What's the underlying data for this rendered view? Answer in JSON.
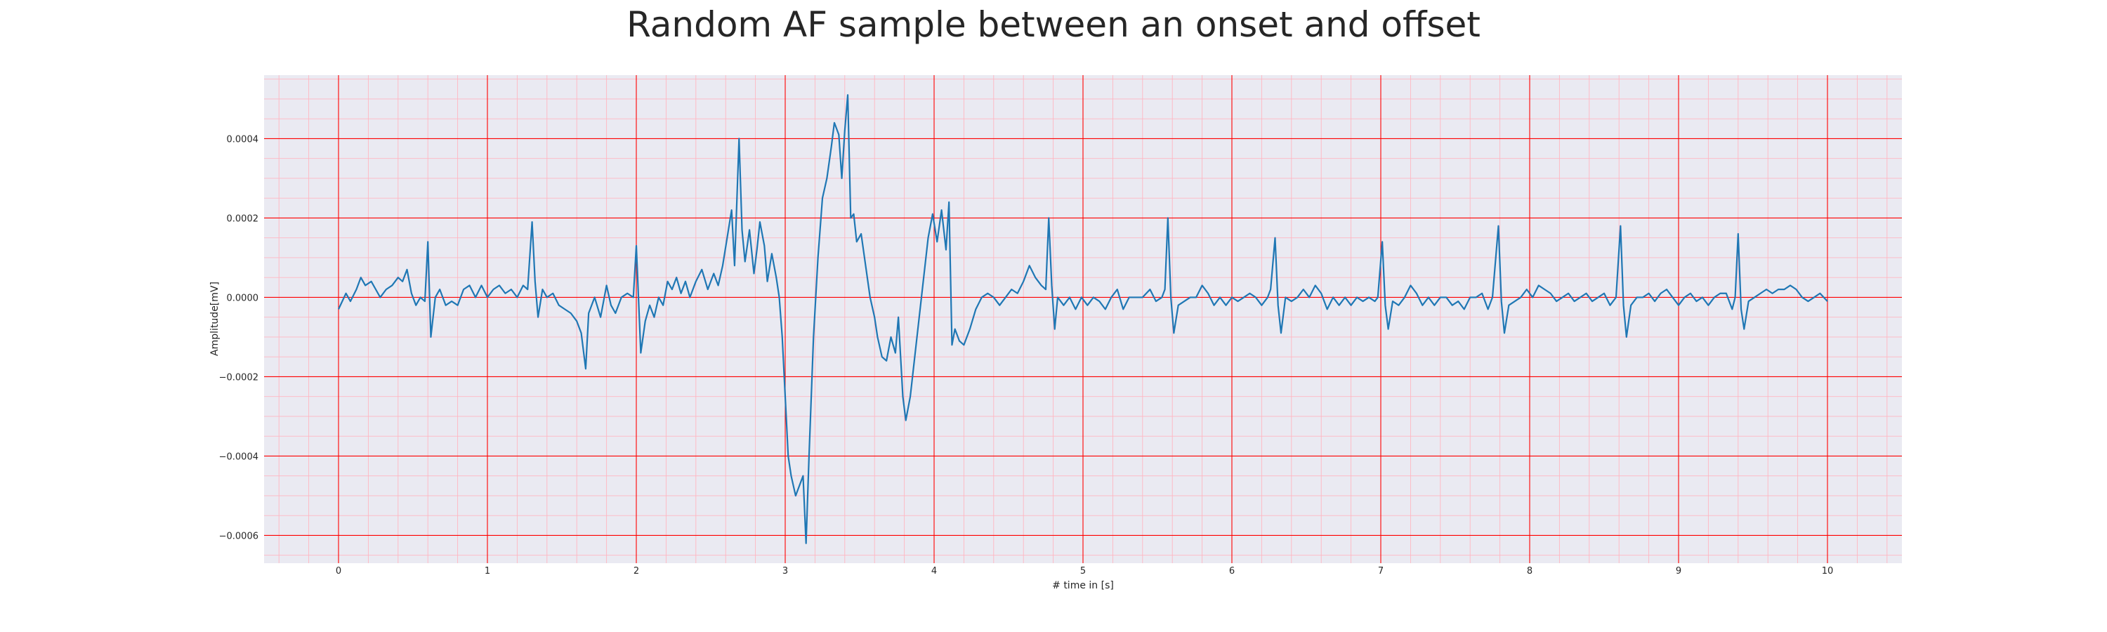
{
  "chart_data": {
    "type": "line",
    "title": "Random AF sample between an onset and offset",
    "xlabel": "# time in [s]",
    "ylabel": "Amplitude[mV]",
    "xlim": [
      -0.5,
      10.5
    ],
    "ylim": [
      -0.00067,
      0.00056
    ],
    "xticks": [
      0,
      1,
      2,
      3,
      4,
      5,
      6,
      7,
      8,
      9,
      10
    ],
    "xtick_labels": [
      "0",
      "1",
      "2",
      "3",
      "4",
      "5",
      "6",
      "7",
      "8",
      "9",
      "10"
    ],
    "yticks": [
      0.0004,
      0.0002,
      0.0,
      -0.0002,
      -0.0004,
      -0.0006
    ],
    "ytick_labels": [
      "0.0004",
      "0.0002",
      "0.0000",
      "−0.0002",
      "−0.0004",
      "−0.0006"
    ],
    "grid": true,
    "minor_grid": true,
    "colors": {
      "line": "#1f77b4",
      "axes_background": "#eaeaf2",
      "major_grid": "#ff0000",
      "minor_grid": "#ffb6c1"
    },
    "series": [
      {
        "values": [
          [
            0.0,
            -3e-05
          ],
          [
            0.05,
            1e-05
          ],
          [
            0.08,
            -1e-05
          ],
          [
            0.12,
            2e-05
          ],
          [
            0.15,
            5e-05
          ],
          [
            0.18,
            3e-05
          ],
          [
            0.22,
            4e-05
          ],
          [
            0.25,
            2e-05
          ],
          [
            0.28,
            0.0
          ],
          [
            0.32,
            2e-05
          ],
          [
            0.36,
            3e-05
          ],
          [
            0.4,
            5e-05
          ],
          [
            0.43,
            4e-05
          ],
          [
            0.46,
            7e-05
          ],
          [
            0.49,
            1e-05
          ],
          [
            0.52,
            -2e-05
          ],
          [
            0.55,
            0.0
          ],
          [
            0.58,
            -1e-05
          ],
          [
            0.6,
            0.00014
          ],
          [
            0.62,
            -0.0001
          ],
          [
            0.65,
            0.0
          ],
          [
            0.68,
            2e-05
          ],
          [
            0.72,
            -2e-05
          ],
          [
            0.76,
            -1e-05
          ],
          [
            0.8,
            -2e-05
          ],
          [
            0.84,
            2e-05
          ],
          [
            0.88,
            3e-05
          ],
          [
            0.92,
            0.0
          ],
          [
            0.96,
            3e-05
          ],
          [
            1.0,
            0.0
          ],
          [
            1.04,
            2e-05
          ],
          [
            1.08,
            3e-05
          ],
          [
            1.12,
            1e-05
          ],
          [
            1.16,
            2e-05
          ],
          [
            1.2,
            0.0
          ],
          [
            1.24,
            3e-05
          ],
          [
            1.27,
            2e-05
          ],
          [
            1.3,
            0.00019
          ],
          [
            1.32,
            4e-05
          ],
          [
            1.34,
            -5e-05
          ],
          [
            1.37,
            2e-05
          ],
          [
            1.4,
            0.0
          ],
          [
            1.44,
            1e-05
          ],
          [
            1.48,
            -2e-05
          ],
          [
            1.52,
            -3e-05
          ],
          [
            1.56,
            -4e-05
          ],
          [
            1.6,
            -6e-05
          ],
          [
            1.63,
            -9e-05
          ],
          [
            1.66,
            -0.00018
          ],
          [
            1.68,
            -4e-05
          ],
          [
            1.72,
            0.0
          ],
          [
            1.76,
            -5e-05
          ],
          [
            1.8,
            3e-05
          ],
          [
            1.83,
            -2e-05
          ],
          [
            1.86,
            -4e-05
          ],
          [
            1.9,
            0.0
          ],
          [
            1.94,
            1e-05
          ],
          [
            1.98,
            0.0
          ],
          [
            2.0,
            0.00013
          ],
          [
            2.03,
            -0.00014
          ],
          [
            2.06,
            -6e-05
          ],
          [
            2.09,
            -2e-05
          ],
          [
            2.12,
            -5e-05
          ],
          [
            2.15,
            0.0
          ],
          [
            2.18,
            -2e-05
          ],
          [
            2.21,
            4e-05
          ],
          [
            2.24,
            2e-05
          ],
          [
            2.27,
            5e-05
          ],
          [
            2.3,
            1e-05
          ],
          [
            2.33,
            4e-05
          ],
          [
            2.36,
            0.0
          ],
          [
            2.4,
            4e-05
          ],
          [
            2.44,
            7e-05
          ],
          [
            2.48,
            2e-05
          ],
          [
            2.52,
            6e-05
          ],
          [
            2.55,
            3e-05
          ],
          [
            2.58,
            8e-05
          ],
          [
            2.61,
            0.00015
          ],
          [
            2.64,
            0.00022
          ],
          [
            2.66,
            8e-05
          ],
          [
            2.69,
            0.0004
          ],
          [
            2.71,
            0.00017
          ],
          [
            2.73,
            9e-05
          ],
          [
            2.76,
            0.00017
          ],
          [
            2.79,
            6e-05
          ],
          [
            2.81,
            0.00012
          ],
          [
            2.83,
            0.00019
          ],
          [
            2.86,
            0.00013
          ],
          [
            2.88,
            4e-05
          ],
          [
            2.91,
            0.00011
          ],
          [
            2.94,
            5e-05
          ],
          [
            2.96,
            0.0
          ],
          [
            2.98,
            -0.0001
          ],
          [
            3.0,
            -0.00025
          ],
          [
            3.02,
            -0.0004
          ],
          [
            3.04,
            -0.00045
          ],
          [
            3.07,
            -0.0005
          ],
          [
            3.09,
            -0.00048
          ],
          [
            3.12,
            -0.00045
          ],
          [
            3.14,
            -0.00062
          ],
          [
            3.16,
            -0.0004
          ],
          [
            3.19,
            -0.0001
          ],
          [
            3.22,
            0.0001
          ],
          [
            3.25,
            0.00025
          ],
          [
            3.28,
            0.0003
          ],
          [
            3.31,
            0.00038
          ],
          [
            3.33,
            0.00044
          ],
          [
            3.36,
            0.00041
          ],
          [
            3.38,
            0.0003
          ],
          [
            3.4,
            0.00042
          ],
          [
            3.42,
            0.00051
          ],
          [
            3.44,
            0.0002
          ],
          [
            3.46,
            0.00021
          ],
          [
            3.48,
            0.00014
          ],
          [
            3.51,
            0.00016
          ],
          [
            3.54,
            8e-05
          ],
          [
            3.57,
            0.0
          ],
          [
            3.6,
            -5e-05
          ],
          [
            3.62,
            -0.0001
          ],
          [
            3.65,
            -0.00015
          ],
          [
            3.68,
            -0.00016
          ],
          [
            3.71,
            -0.0001
          ],
          [
            3.74,
            -0.00014
          ],
          [
            3.76,
            -5e-05
          ],
          [
            3.79,
            -0.00025
          ],
          [
            3.81,
            -0.00031
          ],
          [
            3.84,
            -0.00025
          ],
          [
            3.87,
            -0.00015
          ],
          [
            3.9,
            -5e-05
          ],
          [
            3.93,
            5e-05
          ],
          [
            3.96,
            0.00015
          ],
          [
            3.99,
            0.00021
          ],
          [
            4.02,
            0.00014
          ],
          [
            4.05,
            0.00022
          ],
          [
            4.08,
            0.00012
          ],
          [
            4.1,
            0.00024
          ],
          [
            4.12,
            -0.00012
          ],
          [
            4.14,
            -8e-05
          ],
          [
            4.17,
            -0.00011
          ],
          [
            4.2,
            -0.00012
          ],
          [
            4.24,
            -8e-05
          ],
          [
            4.28,
            -3e-05
          ],
          [
            4.32,
            0.0
          ],
          [
            4.36,
            1e-05
          ],
          [
            4.4,
            0.0
          ],
          [
            4.44,
            -2e-05
          ],
          [
            4.48,
            0.0
          ],
          [
            4.52,
            2e-05
          ],
          [
            4.56,
            1e-05
          ],
          [
            4.6,
            4e-05
          ],
          [
            4.64,
            8e-05
          ],
          [
            4.68,
            5e-05
          ],
          [
            4.72,
            3e-05
          ],
          [
            4.75,
            2e-05
          ],
          [
            4.77,
            0.0002
          ],
          [
            4.79,
            3e-05
          ],
          [
            4.81,
            -8e-05
          ],
          [
            4.83,
            0.0
          ],
          [
            4.87,
            -2e-05
          ],
          [
            4.91,
            0.0
          ],
          [
            4.95,
            -3e-05
          ],
          [
            4.99,
            0.0
          ],
          [
            5.03,
            -2e-05
          ],
          [
            5.07,
            0.0
          ],
          [
            5.11,
            -1e-05
          ],
          [
            5.15,
            -3e-05
          ],
          [
            5.19,
            0.0
          ],
          [
            5.23,
            2e-05
          ],
          [
            5.27,
            -3e-05
          ],
          [
            5.31,
            0.0
          ],
          [
            5.35,
            0.0
          ],
          [
            5.4,
            0.0
          ],
          [
            5.45,
            2e-05
          ],
          [
            5.49,
            -1e-05
          ],
          [
            5.53,
            0.0
          ],
          [
            5.55,
            2e-05
          ],
          [
            5.57,
            0.0002
          ],
          [
            5.59,
            0.0
          ],
          [
            5.61,
            -9e-05
          ],
          [
            5.64,
            -2e-05
          ],
          [
            5.68,
            -1e-05
          ],
          [
            5.72,
            0.0
          ],
          [
            5.76,
            0.0
          ],
          [
            5.8,
            3e-05
          ],
          [
            5.84,
            1e-05
          ],
          [
            5.88,
            -2e-05
          ],
          [
            5.92,
            0.0
          ],
          [
            5.96,
            -2e-05
          ],
          [
            6.0,
            0.0
          ],
          [
            6.04,
            -1e-05
          ],
          [
            6.08,
            0.0
          ],
          [
            6.12,
            1e-05
          ],
          [
            6.16,
            0.0
          ],
          [
            6.2,
            -2e-05
          ],
          [
            6.24,
            0.0
          ],
          [
            6.26,
            2e-05
          ],
          [
            6.29,
            0.00015
          ],
          [
            6.31,
            -2e-05
          ],
          [
            6.33,
            -9e-05
          ],
          [
            6.36,
            0.0
          ],
          [
            6.4,
            -1e-05
          ],
          [
            6.44,
            0.0
          ],
          [
            6.48,
            2e-05
          ],
          [
            6.52,
            0.0
          ],
          [
            6.56,
            3e-05
          ],
          [
            6.6,
            1e-05
          ],
          [
            6.64,
            -3e-05
          ],
          [
            6.68,
            0.0
          ],
          [
            6.72,
            -2e-05
          ],
          [
            6.76,
            0.0
          ],
          [
            6.8,
            -2e-05
          ],
          [
            6.84,
            0.0
          ],
          [
            6.88,
            -1e-05
          ],
          [
            6.92,
            0.0
          ],
          [
            6.96,
            -1e-05
          ],
          [
            6.98,
            0.0
          ],
          [
            7.01,
            0.00014
          ],
          [
            7.03,
            -2e-05
          ],
          [
            7.05,
            -8e-05
          ],
          [
            7.08,
            -1e-05
          ],
          [
            7.12,
            -2e-05
          ],
          [
            7.16,
            0.0
          ],
          [
            7.2,
            3e-05
          ],
          [
            7.24,
            1e-05
          ],
          [
            7.28,
            -2e-05
          ],
          [
            7.32,
            0.0
          ],
          [
            7.36,
            -2e-05
          ],
          [
            7.4,
            0.0
          ],
          [
            7.44,
            0.0
          ],
          [
            7.48,
            -2e-05
          ],
          [
            7.52,
            -1e-05
          ],
          [
            7.56,
            -3e-05
          ],
          [
            7.6,
            0.0
          ],
          [
            7.64,
            0.0
          ],
          [
            7.68,
            1e-05
          ],
          [
            7.72,
            -3e-05
          ],
          [
            7.75,
            0.0
          ],
          [
            7.79,
            0.00018
          ],
          [
            7.81,
            -1e-05
          ],
          [
            7.83,
            -9e-05
          ],
          [
            7.86,
            -2e-05
          ],
          [
            7.9,
            -1e-05
          ],
          [
            7.94,
            0.0
          ],
          [
            7.98,
            2e-05
          ],
          [
            8.02,
            0.0
          ],
          [
            8.06,
            3e-05
          ],
          [
            8.1,
            2e-05
          ],
          [
            8.14,
            1e-05
          ],
          [
            8.18,
            -1e-05
          ],
          [
            8.22,
            0.0
          ],
          [
            8.26,
            1e-05
          ],
          [
            8.3,
            -1e-05
          ],
          [
            8.34,
            0.0
          ],
          [
            8.38,
            1e-05
          ],
          [
            8.42,
            -1e-05
          ],
          [
            8.46,
            0.0
          ],
          [
            8.5,
            1e-05
          ],
          [
            8.54,
            -2e-05
          ],
          [
            8.58,
            0.0
          ],
          [
            8.61,
            0.00018
          ],
          [
            8.63,
            -2e-05
          ],
          [
            8.65,
            -0.0001
          ],
          [
            8.68,
            -2e-05
          ],
          [
            8.72,
            0.0
          ],
          [
            8.76,
            0.0
          ],
          [
            8.8,
            1e-05
          ],
          [
            8.84,
            -1e-05
          ],
          [
            8.88,
            1e-05
          ],
          [
            8.92,
            2e-05
          ],
          [
            8.96,
            0.0
          ],
          [
            9.0,
            -2e-05
          ],
          [
            9.04,
            0.0
          ],
          [
            9.08,
            1e-05
          ],
          [
            9.12,
            -1e-05
          ],
          [
            9.16,
            0.0
          ],
          [
            9.2,
            -2e-05
          ],
          [
            9.24,
            0.0
          ],
          [
            9.28,
            1e-05
          ],
          [
            9.32,
            1e-05
          ],
          [
            9.36,
            -3e-05
          ],
          [
            9.38,
            0.0
          ],
          [
            9.4,
            0.00016
          ],
          [
            9.42,
            -3e-05
          ],
          [
            9.44,
            -8e-05
          ],
          [
            9.47,
            -1e-05
          ],
          [
            9.51,
            0.0
          ],
          [
            9.55,
            1e-05
          ],
          [
            9.59,
            2e-05
          ],
          [
            9.63,
            1e-05
          ],
          [
            9.67,
            2e-05
          ],
          [
            9.71,
            2e-05
          ],
          [
            9.75,
            3e-05
          ],
          [
            9.79,
            2e-05
          ],
          [
            9.83,
            0.0
          ],
          [
            9.87,
            -1e-05
          ],
          [
            9.91,
            0.0
          ],
          [
            9.95,
            1e-05
          ],
          [
            10.0,
            -1e-05
          ]
        ]
      }
    ]
  }
}
